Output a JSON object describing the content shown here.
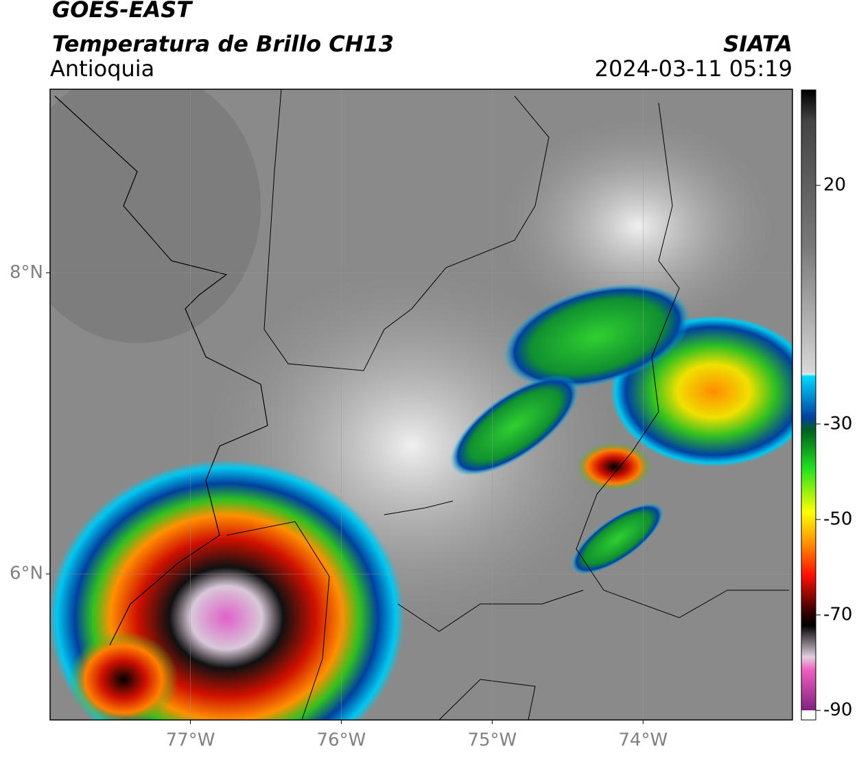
{
  "header": {
    "title": "GOES-EAST",
    "subtitle": "Temperatura de Brillo CH13",
    "region": "Antioquia",
    "source": "SIATA",
    "datetime": "2024-03-11 05:19"
  },
  "map": {
    "xlim": [
      -77.93,
      -73.01
    ],
    "ylim": [
      5.03,
      9.22
    ],
    "xticks": [
      {
        "value": -77,
        "label": "77°W"
      },
      {
        "value": -76,
        "label": "76°W"
      },
      {
        "value": -75,
        "label": "75°W"
      },
      {
        "value": -74,
        "label": "74°W"
      }
    ],
    "yticks": [
      {
        "value": 8,
        "label": "8°N"
      },
      {
        "value": 6,
        "label": "6°N"
      }
    ]
  },
  "colorbar": {
    "lim": [
      -92,
      40
    ],
    "ticks": [
      20,
      -30,
      -50,
      -70,
      -90
    ]
  }
}
